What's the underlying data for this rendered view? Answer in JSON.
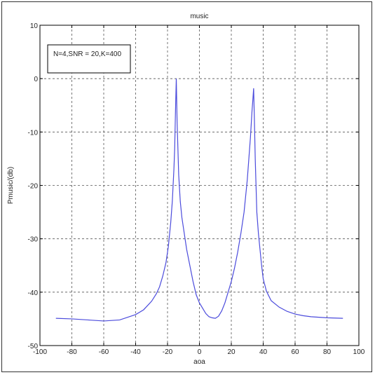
{
  "chart_data": {
    "type": "line",
    "title": "music",
    "xlabel": "aoa",
    "ylabel": "Pmusic/(db)",
    "xlim": [
      -100,
      100
    ],
    "ylim": [
      -50,
      10
    ],
    "x_ticks": [
      -100,
      -80,
      -60,
      -40,
      -20,
      0,
      20,
      40,
      60,
      80,
      100
    ],
    "y_ticks": [
      10,
      0,
      -10,
      -20,
      -30,
      -40,
      -50
    ],
    "grid": true,
    "grid_style": "dashed",
    "annotation": "N=4,SNR = 20,K=400",
    "line_color": "#4b4bdc",
    "series": [
      {
        "x": [
          -90,
          -80,
          -70,
          -60,
          -50,
          -40,
          -35,
          -30,
          -27,
          -25,
          -23,
          -21,
          -19.5,
          -18,
          -17,
          -16,
          -15.5,
          -15,
          -14.5,
          -14,
          -13,
          -12,
          -11,
          -10,
          -8,
          -6,
          -4,
          -2,
          0,
          2,
          4,
          6,
          8,
          10,
          12,
          14,
          16,
          18,
          20,
          22,
          24,
          26,
          28,
          30,
          31,
          32,
          33,
          33.5,
          34,
          34.5,
          35,
          35.5,
          36,
          37,
          38,
          39,
          40,
          42,
          45,
          50,
          55,
          60,
          65,
          70,
          80,
          90
        ],
        "y": [
          -44.9,
          -45,
          -45.2,
          -45.4,
          -45.2,
          -44.2,
          -43.3,
          -41.7,
          -40.3,
          -39,
          -37,
          -34.5,
          -31.5,
          -27,
          -23,
          -17,
          -13,
          -6,
          0,
          -8,
          -18,
          -23,
          -26,
          -28,
          -32,
          -35,
          -38,
          -40.5,
          -42,
          -43,
          -44,
          -44.6,
          -44.8,
          -44.9,
          -44.5,
          -43.5,
          -42,
          -40,
          -38,
          -35.5,
          -32.5,
          -29,
          -25,
          -19,
          -15,
          -11,
          -6,
          -4,
          -1.8,
          -8,
          -15,
          -20,
          -25,
          -29,
          -32,
          -35,
          -37.5,
          -39.8,
          -41.6,
          -42.8,
          -43.6,
          -44.1,
          -44.4,
          -44.6,
          -44.8,
          -44.9
        ]
      }
    ]
  }
}
